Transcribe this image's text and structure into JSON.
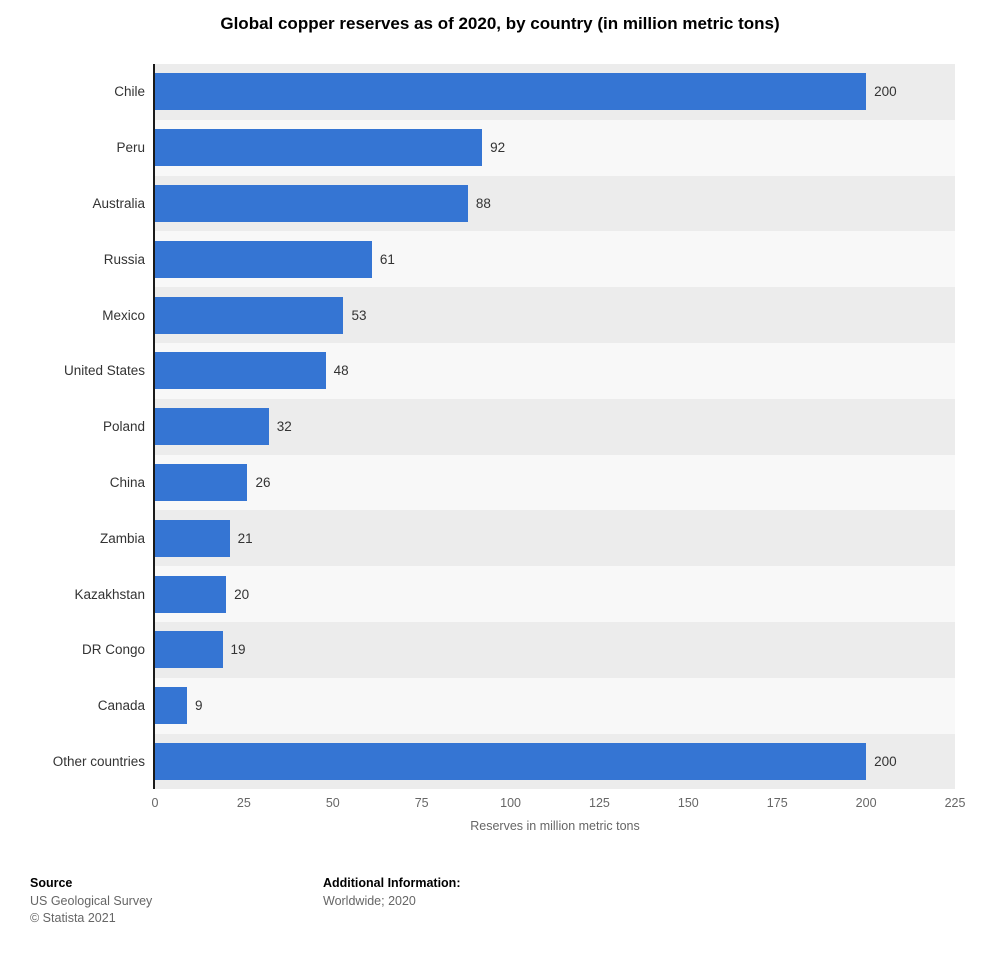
{
  "title": "Global copper reserves as of 2020, by country (in million metric tons)",
  "chart_data": {
    "type": "bar",
    "orientation": "horizontal",
    "title": "Global copper reserves as of 2020, by country (in million metric tons)",
    "categories": [
      "Chile",
      "Peru",
      "Australia",
      "Russia",
      "Mexico",
      "United States",
      "Poland",
      "China",
      "Zambia",
      "Kazakhstan",
      "DR Congo",
      "Canada",
      "Other countries"
    ],
    "values": [
      200,
      92,
      88,
      61,
      53,
      48,
      32,
      26,
      21,
      20,
      19,
      9,
      200
    ],
    "xlabel": "Reserves in million metric tons",
    "ylabel": "",
    "xlim": [
      0,
      225
    ],
    "xticks": [
      0,
      25,
      50,
      75,
      100,
      125,
      150,
      175,
      200,
      225
    ],
    "grid": false,
    "legend": false,
    "bar_color": "#3575d3",
    "row_stripe_colors": [
      "#ececec",
      "#f8f8f8"
    ]
  },
  "footer": {
    "source_heading": "Source",
    "source_lines": [
      "US Geological Survey",
      "© Statista 2021"
    ],
    "additional_heading": "Additional Information:",
    "additional_lines": [
      "Worldwide; 2020"
    ]
  }
}
